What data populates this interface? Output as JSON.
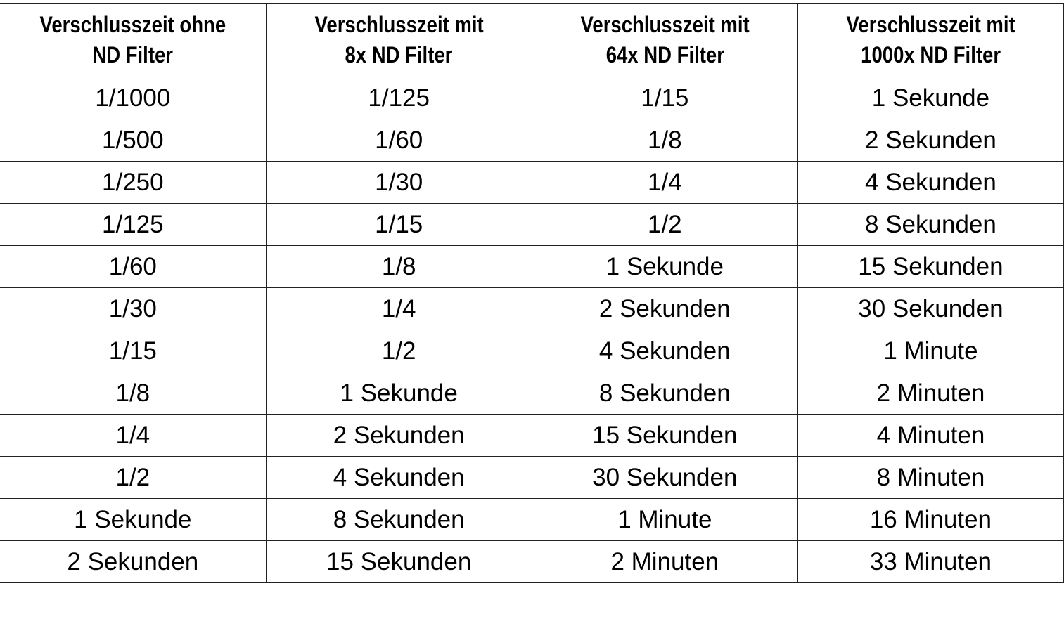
{
  "headers": [
    [
      "Verschlusszeit ohne",
      "ND Filter"
    ],
    [
      "Verschlusszeit mit",
      "8x ND Filter"
    ],
    [
      "Verschlusszeit mit",
      "64x ND Filter"
    ],
    [
      "Verschlusszeit mit",
      "1000x ND Filter"
    ]
  ],
  "rows": [
    [
      "1/1000",
      "1/125",
      "1/15",
      "1 Sekunde"
    ],
    [
      "1/500",
      "1/60",
      "1/8",
      "2 Sekunden"
    ],
    [
      "1/250",
      "1/30",
      "1/4",
      "4 Sekunden"
    ],
    [
      "1/125",
      "1/15",
      "1/2",
      "8 Sekunden"
    ],
    [
      "1/60",
      "1/8",
      "1 Sekunde",
      "15 Sekunden"
    ],
    [
      "1/30",
      "1/4",
      "2 Sekunden",
      "30 Sekunden"
    ],
    [
      "1/15",
      "1/2",
      "4 Sekunden",
      "1 Minute"
    ],
    [
      "1/8",
      "1 Sekunde",
      "8 Sekunden",
      "2 Minuten"
    ],
    [
      "1/4",
      "2 Sekunden",
      "15 Sekunden",
      "4 Minuten"
    ],
    [
      "1/2",
      "4 Sekunden",
      "30 Sekunden",
      "8 Minuten"
    ],
    [
      "1 Sekunde",
      "8 Sekunden",
      "1 Minute",
      "16 Minuten"
    ],
    [
      "2 Sekunden",
      "15 Sekunden",
      "2 Minuten",
      "33 Minuten"
    ]
  ]
}
